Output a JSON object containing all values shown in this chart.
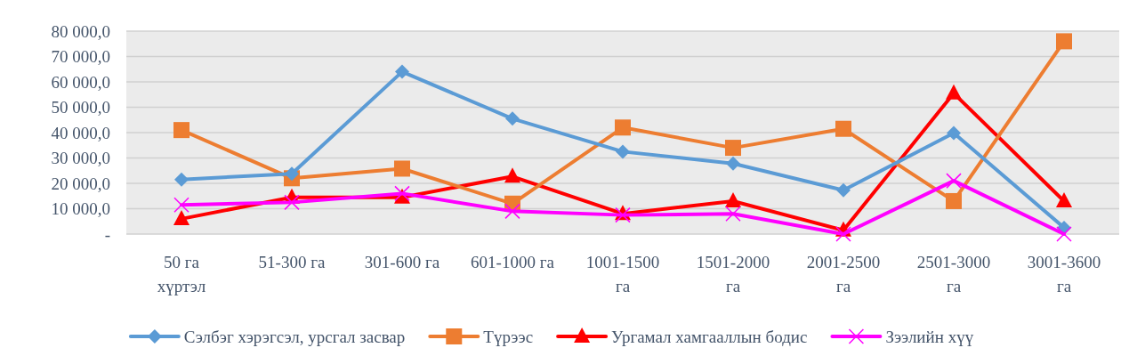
{
  "chart_data": {
    "type": "line",
    "categories": [
      "50 га хүртэл",
      "51-300 га",
      "301-600 га",
      "601-1000 га",
      "1001-1500 га",
      "1501-2000 га",
      "2001-2500 га",
      "2501-3000 га",
      "3001-3600 га"
    ],
    "series": [
      {
        "name": "Сэлбэг хэрэгсэл, урсгал засвар",
        "color": "#5b9bd5",
        "marker": "diamond",
        "values": [
          21500,
          23800,
          64000,
          45500,
          32500,
          27800,
          17300,
          39800,
          2500
        ]
      },
      {
        "name": "Түрээс",
        "color": "#ed7d31",
        "marker": "square",
        "values": [
          41000,
          22000,
          25800,
          12000,
          42000,
          34000,
          41500,
          13000,
          76000
        ]
      },
      {
        "name": "Ургамал хамгааллын бодис",
        "color": "#ff0000",
        "marker": "triangle",
        "values": [
          6000,
          14500,
          14500,
          22700,
          8000,
          13000,
          1500,
          55500,
          13000
        ]
      },
      {
        "name": "Зээлийн хүү",
        "color": "#ff00ff",
        "marker": "cross",
        "values": [
          11500,
          12500,
          16000,
          9000,
          7500,
          8000,
          0,
          21000,
          0
        ]
      }
    ],
    "ylim": [
      0,
      80000
    ],
    "yticks": [
      {
        "value": 0,
        "label": "-"
      },
      {
        "value": 10000,
        "label": "10 000,0"
      },
      {
        "value": 20000,
        "label": "20 000,0"
      },
      {
        "value": 30000,
        "label": "30 000,0"
      },
      {
        "value": 40000,
        "label": "40 000,0"
      },
      {
        "value": 50000,
        "label": "50 000,0"
      },
      {
        "value": 60000,
        "label": "60 000,0"
      },
      {
        "value": 70000,
        "label": "70 000,0"
      },
      {
        "value": 80000,
        "label": "80 000,0"
      }
    ],
    "grid": "y",
    "legend": "bottom"
  }
}
